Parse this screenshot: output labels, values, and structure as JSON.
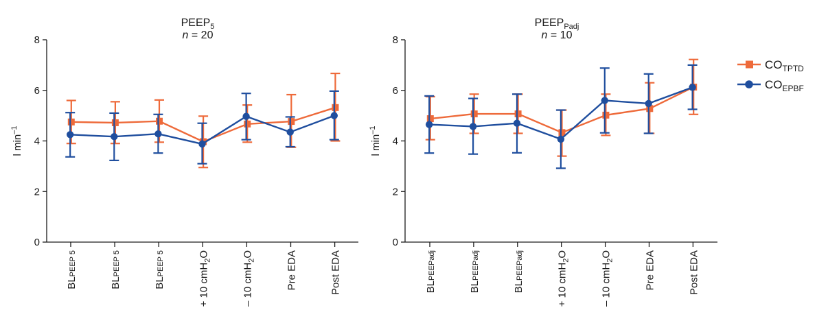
{
  "chart_data": [
    {
      "type": "line",
      "title": "PEEP",
      "title_sub": "5",
      "subtitle_var": "n",
      "subtitle_rest": " = 20",
      "ylabel": "l min",
      "ylabel_sup": "–1",
      "ylim": [
        0,
        8
      ],
      "yticks": [
        0,
        2,
        4,
        6,
        8
      ],
      "categories": [
        {
          "main": "BL",
          "sub": "PEEP 5"
        },
        {
          "main": "BL",
          "sub": "PEEP 5"
        },
        {
          "main": "BL",
          "sub": "PEEP 5"
        },
        {
          "main": "+ 10 cmH",
          "sub": "2",
          "tail": "O"
        },
        {
          "main": "– 10 cmH",
          "sub": "2",
          "tail": "O"
        },
        {
          "main": "Pre EDA"
        },
        {
          "main": "Post EDA"
        }
      ],
      "series": [
        {
          "name": "CO",
          "name_sub": "TPTD",
          "color": "#ee6a3a",
          "marker": "square",
          "values": [
            4.75,
            4.72,
            4.78,
            3.97,
            4.67,
            4.77,
            5.32
          ],
          "err_low": [
            3.9,
            3.9,
            3.95,
            2.95,
            3.95,
            3.75,
            4.0
          ],
          "err_high": [
            5.6,
            5.55,
            5.62,
            4.98,
            5.42,
            5.83,
            6.67
          ]
        },
        {
          "name": "CO",
          "name_sub": "EPBF",
          "color": "#1f4e9e",
          "marker": "circle",
          "values": [
            4.25,
            4.17,
            4.28,
            3.88,
            4.97,
            4.35,
            5.0
          ],
          "err_low": [
            3.37,
            3.23,
            3.52,
            3.1,
            4.05,
            3.77,
            4.05
          ],
          "err_high": [
            5.12,
            5.1,
            5.05,
            4.7,
            5.88,
            4.95,
            5.97
          ]
        }
      ]
    },
    {
      "type": "line",
      "title": "PEEP",
      "title_sub": "Padj",
      "subtitle_var": "n",
      "subtitle_rest": " = 10",
      "ylabel": "l min",
      "ylabel_sup": "–1",
      "ylim": [
        0,
        8
      ],
      "yticks": [
        0,
        2,
        4,
        6,
        8
      ],
      "categories": [
        {
          "main": "BL",
          "sub": "PEEPadj"
        },
        {
          "main": "BL",
          "sub": "PEEPadj"
        },
        {
          "main": "BL",
          "sub": "PEEPadj"
        },
        {
          "main": "+ 10 cmH",
          "sub": "2",
          "tail": "O"
        },
        {
          "main": "– 10 cmH",
          "sub": "2",
          "tail": "O"
        },
        {
          "main": "Pre EDA"
        },
        {
          "main": "Post EDA"
        }
      ],
      "series": [
        {
          "name": "CO",
          "name_sub": "TPTD",
          "color": "#ee6a3a",
          "marker": "square",
          "values": [
            4.88,
            5.07,
            5.07,
            4.33,
            5.02,
            5.28,
            6.13
          ],
          "err_low": [
            4.05,
            4.3,
            4.3,
            3.4,
            4.22,
            4.3,
            5.05
          ],
          "err_high": [
            5.75,
            5.85,
            5.85,
            5.22,
            5.85,
            6.3,
            7.22
          ]
        },
        {
          "name": "CO",
          "name_sub": "EPBF",
          "color": "#1f4e9e",
          "marker": "circle",
          "values": [
            4.65,
            4.57,
            4.7,
            4.07,
            5.6,
            5.48,
            6.12
          ],
          "err_low": [
            3.52,
            3.48,
            3.53,
            2.92,
            4.32,
            4.3,
            5.25
          ],
          "err_high": [
            5.78,
            5.68,
            5.85,
            5.22,
            6.88,
            6.65,
            7.0
          ]
        }
      ]
    }
  ],
  "legend": {
    "placement": "right",
    "items": [
      {
        "name": "CO",
        "name_sub": "TPTD",
        "color": "#ee6a3a",
        "marker": "square"
      },
      {
        "name": "CO",
        "name_sub": "EPBF",
        "color": "#1f4e9e",
        "marker": "circle"
      }
    ]
  }
}
